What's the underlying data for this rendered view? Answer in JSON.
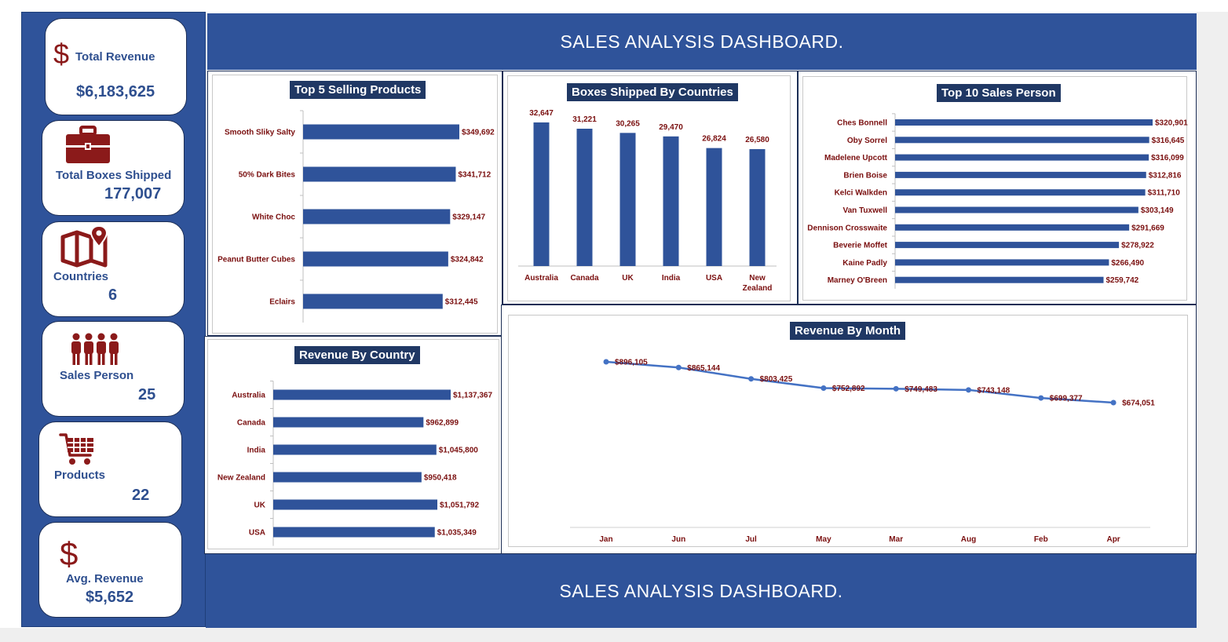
{
  "header": {
    "title": "SALES ANALYSIS DASHBOARD."
  },
  "footer": {
    "title": "SALES ANALYSIS DASHBOARD."
  },
  "colors": {
    "primary": "#2f539a",
    "bar": "#2f539a",
    "dark_navy": "#203864",
    "label_red": "#7a0f0f",
    "icon_red": "#8b1a1a",
    "kpi_text": "#2e4f8f"
  },
  "kpis": {
    "total_revenue": {
      "label": "Total Revenue",
      "value": "$6,183,625",
      "icon": "dollar-icon"
    },
    "total_boxes": {
      "label": "Total Boxes Shipped",
      "value": "177,007",
      "icon": "briefcase-icon"
    },
    "countries": {
      "label": "Countries",
      "value": "6",
      "icon": "map-pin-icon"
    },
    "sales_person": {
      "label": "Sales Person",
      "value": "25",
      "icon": "people-icon"
    },
    "products": {
      "label": "Products",
      "value": "22",
      "icon": "cart-icon"
    },
    "avg_revenue": {
      "label": "Avg. Revenue",
      "value": "$5,652",
      "icon": "dollar-icon"
    }
  },
  "chart_data": [
    {
      "id": "top_products",
      "type": "bar",
      "orientation": "horizontal",
      "title": "Top 5 Selling Products",
      "categories": [
        "Smooth Sliky Salty",
        "50% Dark Bites",
        "White Choc",
        "Peanut Butter Cubes",
        "Eclairs"
      ],
      "values": [
        349692,
        341712,
        329147,
        324842,
        312445
      ],
      "data_labels": [
        "$349,692",
        "$341,712",
        "$329,147",
        "$324,842",
        "$312,445"
      ],
      "grid": false
    },
    {
      "id": "boxes_by_country",
      "type": "bar",
      "orientation": "vertical",
      "title": "Boxes Shipped By Countries",
      "categories": [
        "Australia",
        "Canada",
        "UK",
        "India",
        "USA",
        "New Zealand"
      ],
      "values": [
        32647,
        31221,
        30265,
        29470,
        26824,
        26580
      ],
      "data_labels": [
        "32,647",
        "31,221",
        "30,265",
        "29,470",
        "26,824",
        "26,580"
      ],
      "grid": false
    },
    {
      "id": "top_sales_person",
      "type": "bar",
      "orientation": "horizontal",
      "title": "Top 10 Sales Person",
      "categories": [
        "Ches Bonnell",
        "Oby Sorrel",
        "Madelene Upcott",
        "Brien Boise",
        "Kelci Walkden",
        "Van Tuxwell",
        "Dennison Crosswaite",
        "Beverie Moffet",
        "Kaine Padly",
        "Marney O'Breen"
      ],
      "values": [
        320901,
        316645,
        316099,
        312816,
        311710,
        303149,
        291669,
        278922,
        266490,
        259742
      ],
      "data_labels": [
        "$320,901",
        "$316,645",
        "$316,099",
        "$312,816",
        "$311,710",
        "$303,149",
        "$291,669",
        "$278,922",
        "$266,490",
        "$259,742"
      ],
      "grid": false
    },
    {
      "id": "revenue_by_country",
      "type": "bar",
      "orientation": "horizontal",
      "title": "Revenue By Country",
      "categories": [
        "Australia",
        "Canada",
        "India",
        "New Zealand",
        "UK",
        "USA"
      ],
      "values": [
        1137367,
        962899,
        1045800,
        950418,
        1051792,
        1035349
      ],
      "data_labels": [
        "$1,137,367",
        "$962,899",
        "$1,045,800",
        "$950,418",
        "$1,051,792",
        "$1,035,349"
      ],
      "grid": false
    },
    {
      "id": "revenue_by_month",
      "type": "line",
      "title": "Revenue By Month",
      "x": [
        "Jan",
        "Jun",
        "Jul",
        "May",
        "Mar",
        "Aug",
        "Feb",
        "Apr"
      ],
      "values": [
        896105,
        865144,
        803425,
        752892,
        749483,
        743148,
        699377,
        674051
      ],
      "data_labels": [
        "$896,105",
        "$865,144",
        "$803,425",
        "$752,892",
        "$749,483",
        "$743,148",
        "$699,377",
        "$674,051"
      ],
      "grid": false
    }
  ]
}
